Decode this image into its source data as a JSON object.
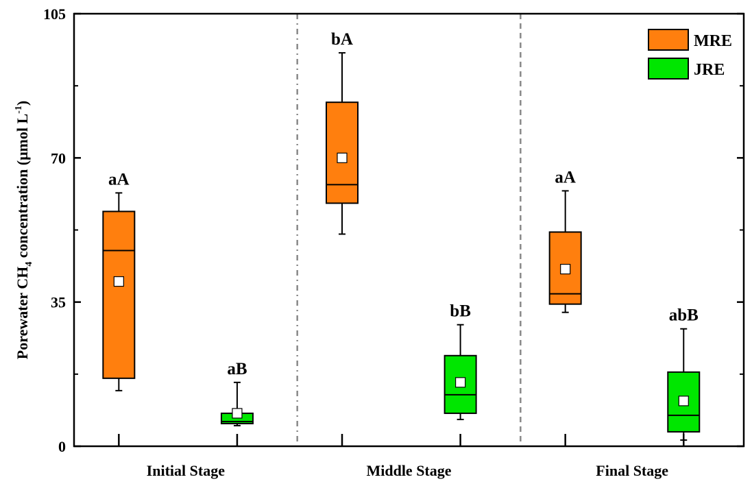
{
  "chart_data": {
    "type": "box",
    "ylabel_main": "Porewater CH",
    "ylabel_sub": "4",
    "ylabel_rest": " concentration (μmol L",
    "ylabel_sup": "-1",
    "ylabel_end": ")",
    "xlabel": "",
    "ylim": [
      0,
      105
    ],
    "yticks": [
      0,
      35,
      70,
      105
    ],
    "yminor": [
      17.5,
      52.5,
      87.5
    ],
    "categories": [
      "Initial Stage",
      "Middle Stage",
      "Final Stage"
    ],
    "grid": false,
    "legend_position": "top-right",
    "series": [
      {
        "name": "MRE",
        "color": "#FF7F0E",
        "boxes": [
          {
            "whisker_low": 13.5,
            "q1": 16.5,
            "median": 47.5,
            "q3": 57,
            "whisker_high": 61.5,
            "mean": 40,
            "label": "aA"
          },
          {
            "whisker_low": 51.5,
            "q1": 59,
            "median": 63.5,
            "q3": 83.5,
            "whisker_high": 95.5,
            "mean": 70,
            "label": "bA"
          },
          {
            "whisker_low": 32.5,
            "q1": 34.5,
            "median": 37,
            "q3": 52,
            "whisker_high": 62,
            "mean": 43,
            "label": "aA"
          }
        ]
      },
      {
        "name": "JRE",
        "color": "#00E600",
        "boxes": [
          {
            "whisker_low": 5,
            "q1": 5.5,
            "median": 6,
            "q3": 8,
            "whisker_high": 15.5,
            "mean": 8,
            "label": "aB"
          },
          {
            "whisker_low": 6.5,
            "q1": 8,
            "median": 12.5,
            "q3": 22,
            "whisker_high": 29.5,
            "mean": 15.5,
            "label": "bB"
          },
          {
            "whisker_low": 1.5,
            "q1": 3.5,
            "median": 7.5,
            "q3": 18,
            "whisker_high": 28.5,
            "mean": 11,
            "label": "abB"
          }
        ]
      }
    ]
  }
}
